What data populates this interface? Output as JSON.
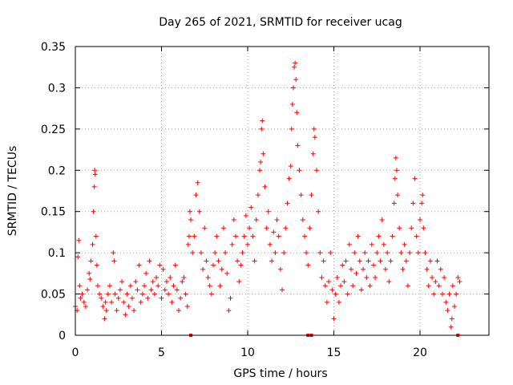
{
  "chart_data": {
    "type": "scatter",
    "title": "Day 265 of 2021, SRMTID for receiver ucag",
    "xlabel": "GPS time / hours",
    "ylabel": "SRMTID / TECUs",
    "xlim": [
      0,
      24
    ],
    "ylim": [
      0,
      0.35
    ],
    "x_ticks": [
      0,
      5,
      10,
      15,
      20
    ],
    "x_tick_labels": [
      "0",
      "5",
      "10",
      "15",
      "20"
    ],
    "y_ticks": [
      0,
      0.05,
      0.1,
      0.15,
      0.2,
      0.25,
      0.3,
      0.35
    ],
    "y_tick_labels": [
      "0",
      "0.05",
      "0.1",
      "0.15",
      "0.2",
      "0.25",
      "0.3",
      "0.35"
    ],
    "grid": true,
    "marker": "plus",
    "color": "#ff0000",
    "series": [
      {
        "name": "SRMTID",
        "points": [
          [
            0.0,
            0.035
          ],
          [
            0.1,
            0.03
          ],
          [
            0.15,
            0.095
          ],
          [
            0.2,
            0.115
          ],
          [
            0.25,
            0.06
          ],
          [
            0.3,
            0.045
          ],
          [
            0.4,
            0.05
          ],
          [
            0.5,
            0.04
          ],
          [
            0.6,
            0.035
          ],
          [
            0.7,
            0.055
          ],
          [
            0.8,
            0.075
          ],
          [
            0.85,
            0.068
          ],
          [
            0.9,
            0.09
          ],
          [
            1.0,
            0.11
          ],
          [
            1.05,
            0.15
          ],
          [
            1.1,
            0.18
          ],
          [
            1.12,
            0.2
          ],
          [
            1.15,
            0.195
          ],
          [
            1.2,
            0.12
          ],
          [
            1.25,
            0.085
          ],
          [
            1.3,
            0.06
          ],
          [
            1.4,
            0.05
          ],
          [
            1.5,
            0.045
          ],
          [
            1.6,
            0.035
          ],
          [
            1.7,
            0.02
          ],
          [
            1.75,
            0.04
          ],
          [
            1.8,
            0.03
          ],
          [
            1.9,
            0.05
          ],
          [
            2.0,
            0.06
          ],
          [
            2.1,
            0.04
          ],
          [
            2.2,
            0.1
          ],
          [
            2.25,
            0.09
          ],
          [
            2.3,
            0.05
          ],
          [
            2.4,
            0.03
          ],
          [
            2.5,
            0.045
          ],
          [
            2.6,
            0.055
          ],
          [
            2.7,
            0.065
          ],
          [
            2.8,
            0.04
          ],
          [
            2.9,
            0.025
          ],
          [
            3.0,
            0.05
          ],
          [
            3.1,
            0.035
          ],
          [
            3.2,
            0.06
          ],
          [
            3.3,
            0.045
          ],
          [
            3.4,
            0.03
          ],
          [
            3.5,
            0.065
          ],
          [
            3.6,
            0.055
          ],
          [
            3.7,
            0.085
          ],
          [
            3.8,
            0.04
          ],
          [
            3.9,
            0.05
          ],
          [
            4.0,
            0.06
          ],
          [
            4.1,
            0.075
          ],
          [
            4.2,
            0.045
          ],
          [
            4.3,
            0.09
          ],
          [
            4.4,
            0.055
          ],
          [
            4.5,
            0.065
          ],
          [
            4.6,
            0.05
          ],
          [
            4.7,
            0.07
          ],
          [
            4.8,
            0.06
          ],
          [
            4.9,
            0.085
          ],
          [
            5.0,
            0.045
          ],
          [
            5.1,
            0.08
          ],
          [
            5.2,
            0.055
          ],
          [
            5.3,
            0.065
          ],
          [
            5.4,
            0.05
          ],
          [
            5.5,
            0.07
          ],
          [
            5.6,
            0.04
          ],
          [
            5.7,
            0.06
          ],
          [
            5.8,
            0.085
          ],
          [
            5.9,
            0.055
          ],
          [
            6.0,
            0.03
          ],
          [
            6.1,
            0.045
          ],
          [
            6.2,
            0.065
          ],
          [
            6.3,
            0.07
          ],
          [
            6.4,
            0.05
          ],
          [
            6.5,
            0.035
          ],
          [
            6.55,
            0.11
          ],
          [
            6.6,
            0.12
          ],
          [
            6.65,
            0.15
          ],
          [
            6.7,
            0.14
          ],
          [
            6.8,
            0.1
          ],
          [
            6.9,
            0.12
          ],
          [
            7.0,
            0.17
          ],
          [
            7.1,
            0.185
          ],
          [
            7.2,
            0.15
          ],
          [
            7.3,
            0.1
          ],
          [
            7.4,
            0.08
          ],
          [
            7.5,
            0.13
          ],
          [
            7.6,
            0.09
          ],
          [
            7.7,
            0.07
          ],
          [
            7.8,
            0.06
          ],
          [
            7.9,
            0.05
          ],
          [
            8.0,
            0.085
          ],
          [
            8.1,
            0.1
          ],
          [
            8.2,
            0.12
          ],
          [
            8.3,
            0.09
          ],
          [
            8.4,
            0.06
          ],
          [
            8.5,
            0.08
          ],
          [
            8.6,
            0.13
          ],
          [
            8.7,
            0.1
          ],
          [
            8.8,
            0.075
          ],
          [
            8.9,
            0.03
          ],
          [
            9.0,
            0.045
          ],
          [
            9.1,
            0.11
          ],
          [
            9.2,
            0.14
          ],
          [
            9.3,
            0.12
          ],
          [
            9.4,
            0.09
          ],
          [
            9.5,
            0.065
          ],
          [
            9.6,
            0.085
          ],
          [
            9.7,
            0.1
          ],
          [
            9.8,
            0.12
          ],
          [
            9.9,
            0.145
          ],
          [
            10.0,
            0.11
          ],
          [
            10.1,
            0.13
          ],
          [
            10.2,
            0.155
          ],
          [
            10.3,
            0.12
          ],
          [
            10.4,
            0.09
          ],
          [
            10.5,
            0.14
          ],
          [
            10.6,
            0.17
          ],
          [
            10.7,
            0.2
          ],
          [
            10.75,
            0.21
          ],
          [
            10.8,
            0.25
          ],
          [
            10.85,
            0.26
          ],
          [
            10.9,
            0.22
          ],
          [
            11.0,
            0.18
          ],
          [
            11.1,
            0.13
          ],
          [
            11.2,
            0.15
          ],
          [
            11.3,
            0.11
          ],
          [
            11.4,
            0.09
          ],
          [
            11.5,
            0.125
          ],
          [
            11.6,
            0.1
          ],
          [
            11.7,
            0.14
          ],
          [
            11.8,
            0.12
          ],
          [
            11.9,
            0.08
          ],
          [
            12.0,
            0.055
          ],
          [
            12.1,
            0.1
          ],
          [
            12.2,
            0.13
          ],
          [
            12.3,
            0.16
          ],
          [
            12.4,
            0.19
          ],
          [
            12.5,
            0.205
          ],
          [
            12.55,
            0.25
          ],
          [
            12.6,
            0.28
          ],
          [
            12.65,
            0.3
          ],
          [
            12.7,
            0.325
          ],
          [
            12.75,
            0.33
          ],
          [
            12.8,
            0.31
          ],
          [
            12.85,
            0.27
          ],
          [
            12.9,
            0.23
          ],
          [
            13.0,
            0.2
          ],
          [
            13.1,
            0.17
          ],
          [
            13.2,
            0.14
          ],
          [
            13.3,
            0.12
          ],
          [
            13.4,
            0.1
          ],
          [
            13.5,
            0.085
          ],
          [
            13.6,
            0.13
          ],
          [
            13.7,
            0.17
          ],
          [
            13.8,
            0.22
          ],
          [
            13.85,
            0.25
          ],
          [
            13.9,
            0.24
          ],
          [
            14.0,
            0.2
          ],
          [
            14.1,
            0.15
          ],
          [
            14.2,
            0.1
          ],
          [
            14.3,
            0.07
          ],
          [
            14.4,
            0.09
          ],
          [
            14.5,
            0.06
          ],
          [
            14.6,
            0.04
          ],
          [
            14.7,
            0.065
          ],
          [
            14.8,
            0.1
          ],
          [
            14.9,
            0.055
          ],
          [
            15.0,
            0.02
          ],
          [
            15.1,
            0.05
          ],
          [
            15.2,
            0.07
          ],
          [
            15.3,
            0.04
          ],
          [
            15.4,
            0.06
          ],
          [
            15.5,
            0.085
          ],
          [
            15.6,
            0.065
          ],
          [
            15.7,
            0.09
          ],
          [
            15.8,
            0.05
          ],
          [
            15.9,
            0.11
          ],
          [
            16.0,
            0.08
          ],
          [
            16.1,
            0.06
          ],
          [
            16.2,
            0.1
          ],
          [
            16.3,
            0.075
          ],
          [
            16.4,
            0.12
          ],
          [
            16.5,
            0.09
          ],
          [
            16.6,
            0.055
          ],
          [
            16.7,
            0.08
          ],
          [
            16.8,
            0.1
          ],
          [
            16.9,
            0.07
          ],
          [
            17.0,
            0.09
          ],
          [
            17.1,
            0.06
          ],
          [
            17.2,
            0.11
          ],
          [
            17.3,
            0.085
          ],
          [
            17.4,
            0.07
          ],
          [
            17.5,
            0.1
          ],
          [
            17.6,
            0.12
          ],
          [
            17.7,
            0.09
          ],
          [
            17.8,
            0.14
          ],
          [
            17.9,
            0.11
          ],
          [
            18.0,
            0.08
          ],
          [
            18.1,
            0.1
          ],
          [
            18.2,
            0.065
          ],
          [
            18.3,
            0.09
          ],
          [
            18.4,
            0.12
          ],
          [
            18.5,
            0.16
          ],
          [
            18.55,
            0.19
          ],
          [
            18.6,
            0.215
          ],
          [
            18.65,
            0.2
          ],
          [
            18.7,
            0.17
          ],
          [
            18.8,
            0.13
          ],
          [
            18.9,
            0.1
          ],
          [
            19.0,
            0.08
          ],
          [
            19.1,
            0.11
          ],
          [
            19.2,
            0.09
          ],
          [
            19.3,
            0.06
          ],
          [
            19.4,
            0.1
          ],
          [
            19.5,
            0.13
          ],
          [
            19.6,
            0.16
          ],
          [
            19.7,
            0.19
          ],
          [
            19.8,
            0.12
          ],
          [
            19.9,
            0.1
          ],
          [
            20.0,
            0.14
          ],
          [
            20.1,
            0.16
          ],
          [
            20.15,
            0.17
          ],
          [
            20.2,
            0.13
          ],
          [
            20.3,
            0.1
          ],
          [
            20.4,
            0.08
          ],
          [
            20.5,
            0.06
          ],
          [
            20.6,
            0.09
          ],
          [
            20.7,
            0.07
          ],
          [
            20.8,
            0.05
          ],
          [
            20.9,
            0.065
          ],
          [
            21.0,
            0.09
          ],
          [
            21.1,
            0.06
          ],
          [
            21.2,
            0.08
          ],
          [
            21.3,
            0.05
          ],
          [
            21.4,
            0.07
          ],
          [
            21.5,
            0.04
          ],
          [
            21.6,
            0.03
          ],
          [
            21.7,
            0.05
          ],
          [
            21.8,
            0.01
          ],
          [
            21.85,
            0.02
          ],
          [
            21.9,
            0.06
          ],
          [
            22.0,
            0.035
          ],
          [
            22.1,
            0.05
          ],
          [
            22.2,
            0.07
          ],
          [
            22.3,
            0.065
          ]
        ]
      }
    ],
    "baseline_markers": [
      {
        "x": 6.7,
        "y": 0
      },
      {
        "x": 13.5,
        "y": 0
      },
      {
        "x": 13.7,
        "y": 0
      },
      {
        "x": 22.2,
        "y": 0
      }
    ]
  }
}
